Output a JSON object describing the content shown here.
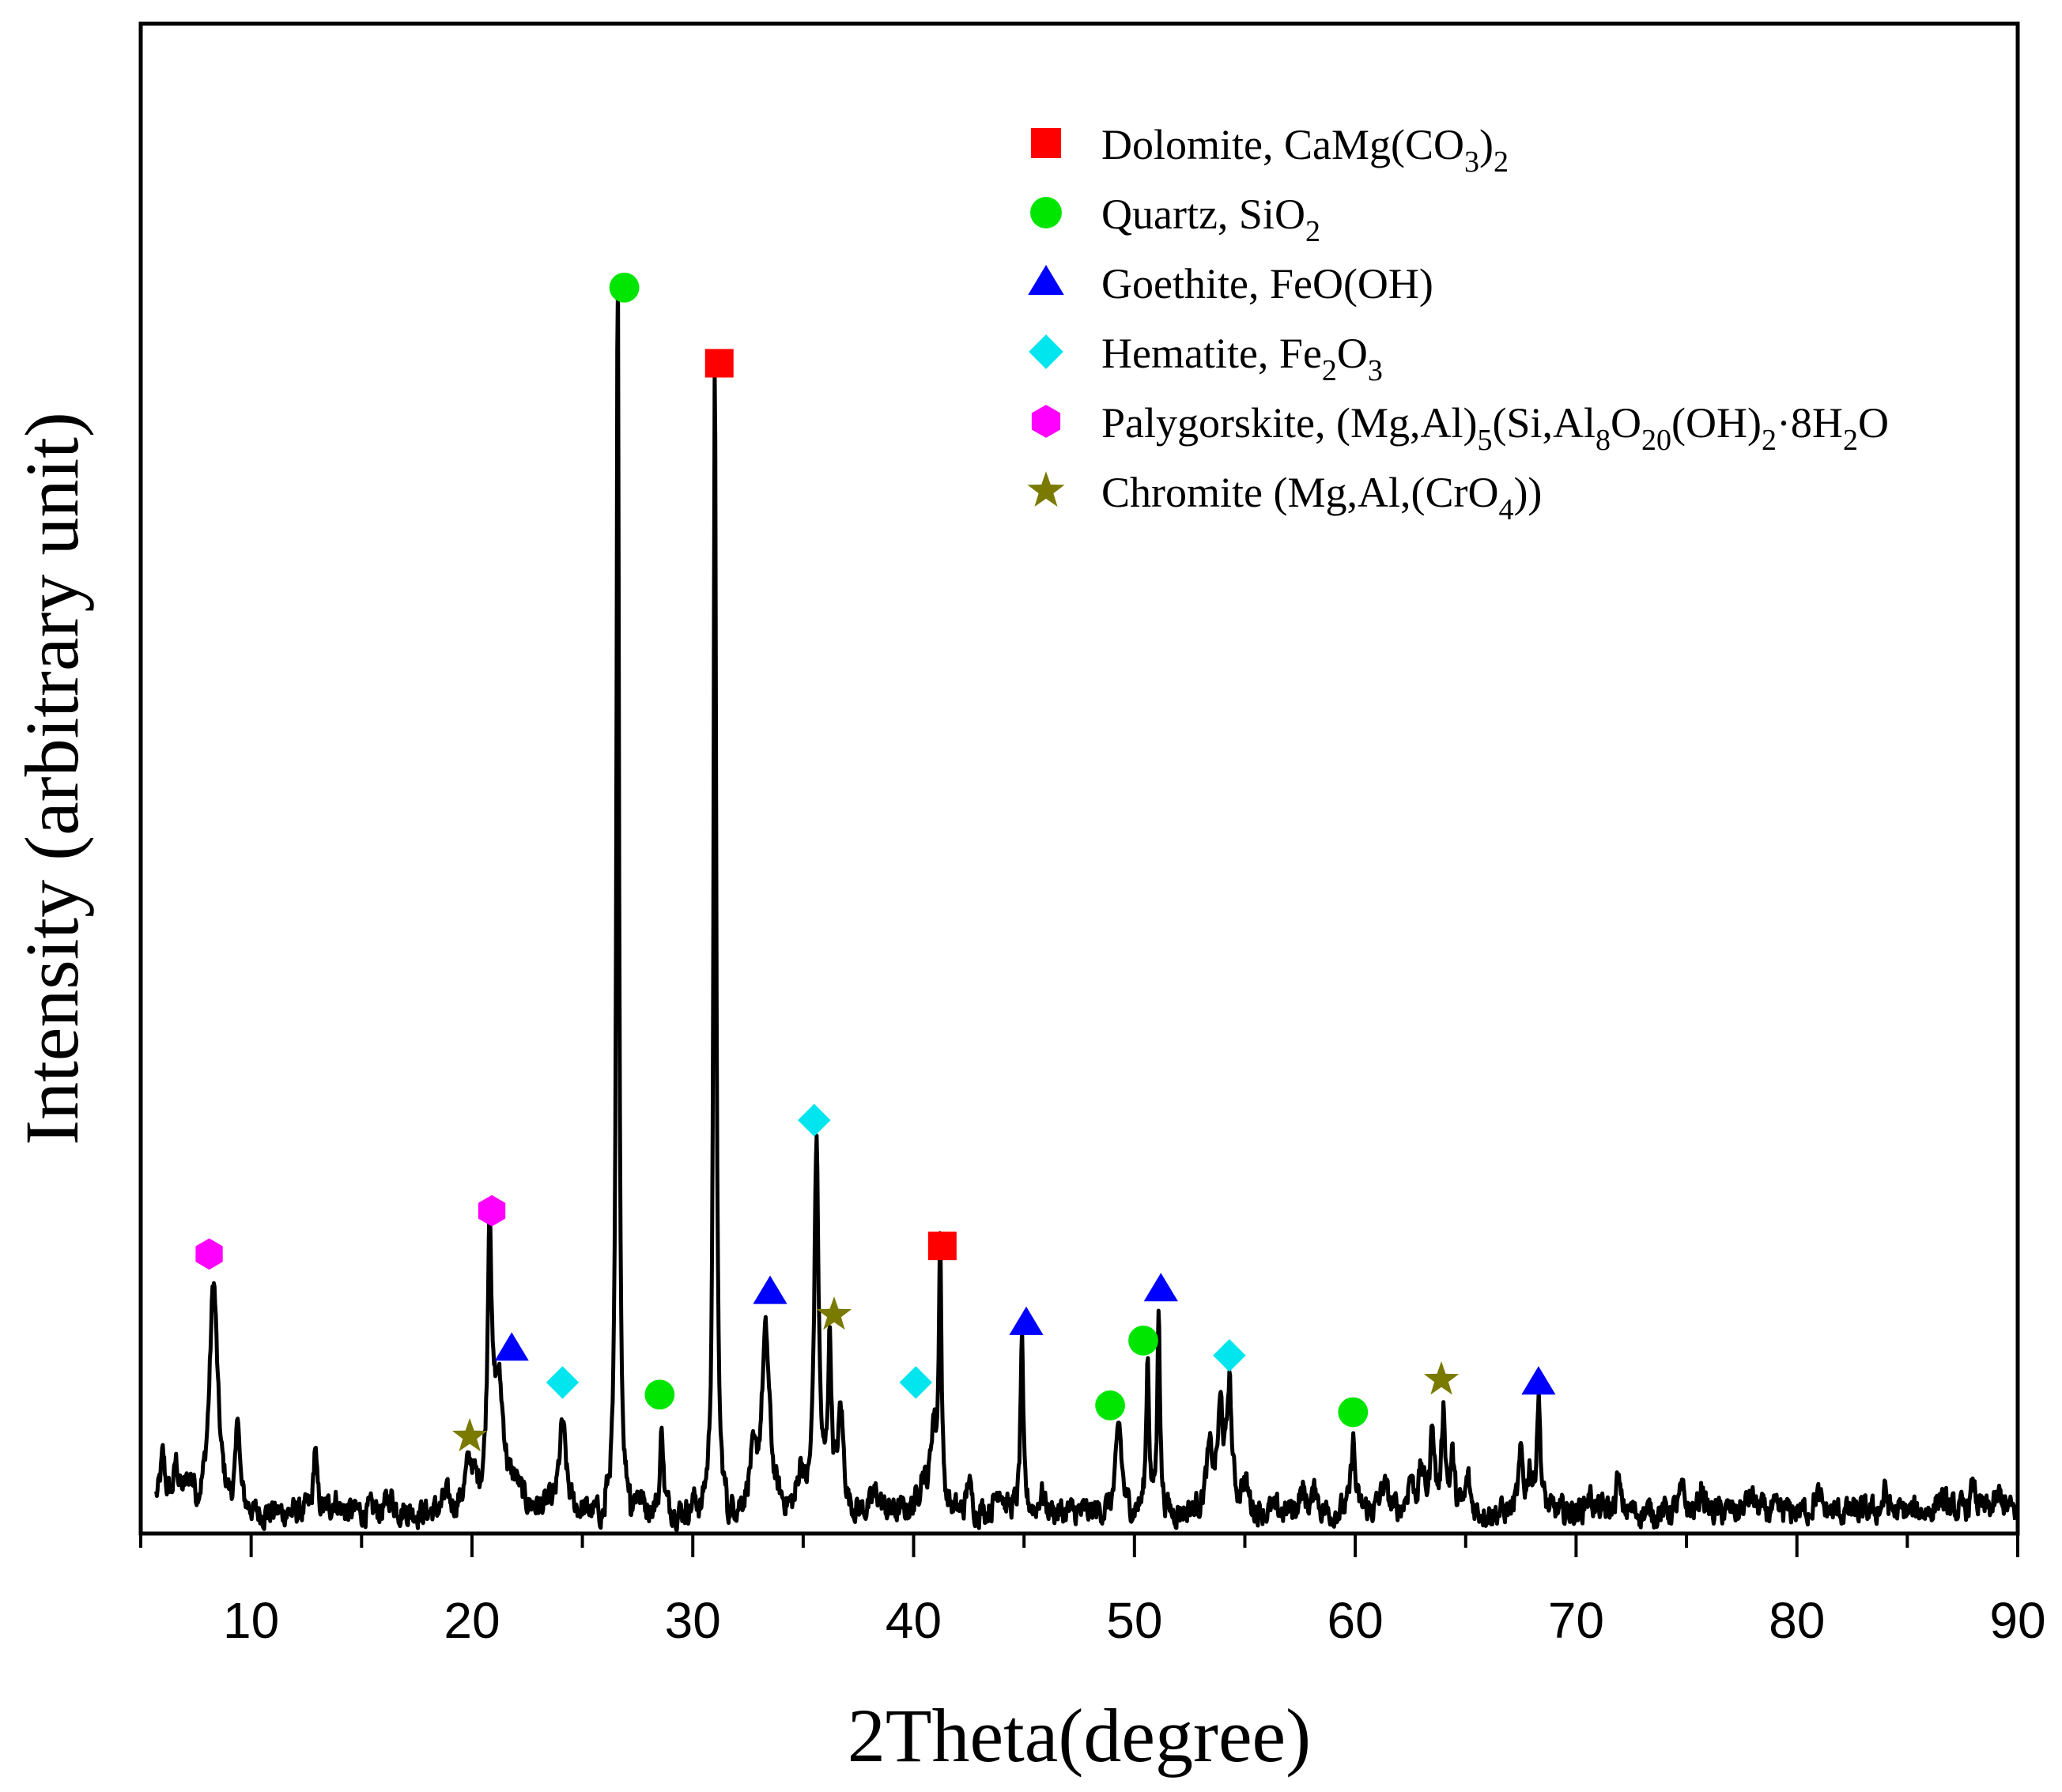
{
  "chart_data": {
    "type": "line",
    "xlabel": "2Theta(degree)",
    "ylabel": "Intensity (arbitrary unit)",
    "xlim": [
      5,
      90
    ],
    "ylim": [
      0,
      100
    ],
    "x_ticks": [
      "10",
      "20",
      "30",
      "40",
      "50",
      "60",
      "70",
      "80",
      "90"
    ],
    "y_ticks_labeled": false,
    "grid": false,
    "legend_position": "top-right",
    "colors": {
      "line": "#000000",
      "dolomite": "#ff0000",
      "quartz": "#00e600",
      "goethite": "#0000ff",
      "hematite": "#00e5ee",
      "palygorskite": "#ff00ff",
      "chromite": "#7a7a00"
    },
    "legend": [
      {
        "key": "dolomite",
        "marker": "square",
        "parts": [
          [
            "Dolomite, CaMg(CO",
            "n"
          ],
          [
            "3",
            "sub"
          ],
          [
            ")",
            "n"
          ],
          [
            "2",
            "sub"
          ]
        ]
      },
      {
        "key": "quartz",
        "marker": "circle",
        "parts": [
          [
            "Quartz, SiO",
            "n"
          ],
          [
            "2",
            "sub"
          ]
        ]
      },
      {
        "key": "goethite",
        "marker": "triangle",
        "parts": [
          [
            "Goethite, FeO(OH)",
            "n"
          ]
        ]
      },
      {
        "key": "hematite",
        "marker": "diamond",
        "parts": [
          [
            "Hematite, Fe",
            "n"
          ],
          [
            "2",
            "sub"
          ],
          [
            "O",
            "n"
          ],
          [
            "3",
            "sub"
          ]
        ]
      },
      {
        "key": "palygorskite",
        "marker": "hexagon",
        "parts": [
          [
            "Palygorskite, (Mg,Al)",
            "n"
          ],
          [
            "5",
            "sub"
          ],
          [
            "(Si,Al",
            "n"
          ],
          [
            "8",
            "sub"
          ],
          [
            "O",
            "n"
          ],
          [
            "20",
            "sub"
          ],
          [
            "(OH)",
            "n"
          ],
          [
            "2",
            "sub"
          ],
          [
            "·8H",
            "n"
          ],
          [
            "2",
            "sub"
          ],
          [
            "O",
            "n"
          ]
        ]
      },
      {
        "key": "chromite",
        "marker": "star",
        "parts": [
          [
            "Chromite (Mg,Al,(CrO",
            "n"
          ],
          [
            "4",
            "sub"
          ],
          [
            "))",
            "n"
          ]
        ]
      }
    ],
    "baseline": 0.7,
    "peaks": [
      [
        6.0,
        3.2,
        0.12
      ],
      [
        6.6,
        2.5,
        0.12
      ],
      [
        7.2,
        1.2,
        0.15
      ],
      [
        8.3,
        17.0,
        0.22
      ],
      [
        9.4,
        7.0,
        0.09
      ],
      [
        12.9,
        5.0,
        0.08
      ],
      [
        13.8,
        1.0,
        0.2
      ],
      [
        16.3,
        1.2,
        0.2
      ],
      [
        18.8,
        1.0,
        0.15
      ],
      [
        19.9,
        3.5,
        0.25
      ],
      [
        20.8,
        20.5,
        0.1
      ],
      [
        21.2,
        9.0,
        0.3
      ],
      [
        22.0,
        1.5,
        0.3
      ],
      [
        24.1,
        6.5,
        0.18
      ],
      [
        26.6,
        92.0,
        0.07
      ],
      [
        27.5,
        1.5,
        0.25
      ],
      [
        28.6,
        6.5,
        0.08
      ],
      [
        30.1,
        1.0,
        0.2
      ],
      [
        31.0,
        86.0,
        0.07
      ],
      [
        32.7,
        3.0,
        0.2
      ],
      [
        33.3,
        13.0,
        0.22
      ],
      [
        34.9,
        3.0,
        0.15
      ],
      [
        35.6,
        27.0,
        0.12
      ],
      [
        36.2,
        12.0,
        0.1
      ],
      [
        36.7,
        7.5,
        0.15
      ],
      [
        38.3,
        1.5,
        0.2
      ],
      [
        40.4,
        2.5,
        0.2
      ],
      [
        40.9,
        6.0,
        0.15
      ],
      [
        41.2,
        20.0,
        0.07
      ],
      [
        42.5,
        2.5,
        0.1
      ],
      [
        43.9,
        2.0,
        0.2
      ],
      [
        44.9,
        13.0,
        0.07
      ],
      [
        45.8,
        1.5,
        0.15
      ],
      [
        49.3,
        6.5,
        0.15
      ],
      [
        50.6,
        11.5,
        0.08
      ],
      [
        51.1,
        15.5,
        0.07
      ],
      [
        53.4,
        4.0,
        0.2
      ],
      [
        53.9,
        7.0,
        0.15
      ],
      [
        54.3,
        9.0,
        0.12
      ],
      [
        55.0,
        2.0,
        0.2
      ],
      [
        57.6,
        1.5,
        0.2
      ],
      [
        58.2,
        2.0,
        0.1
      ],
      [
        59.9,
        5.5,
        0.1
      ],
      [
        61.3,
        2.0,
        0.2
      ],
      [
        62.5,
        2.5,
        0.15
      ],
      [
        63.0,
        3.0,
        0.15
      ],
      [
        63.5,
        6.5,
        0.1
      ],
      [
        64.0,
        7.5,
        0.1
      ],
      [
        64.4,
        4.0,
        0.1
      ],
      [
        65.1,
        2.5,
        0.12
      ],
      [
        67.5,
        4.0,
        0.12
      ],
      [
        67.9,
        3.0,
        0.1
      ],
      [
        68.3,
        8.5,
        0.1
      ],
      [
        70.6,
        1.2,
        0.2
      ],
      [
        71.9,
        2.5,
        0.1
      ],
      [
        74.8,
        1.5,
        0.15
      ],
      [
        75.7,
        2.0,
        0.1
      ],
      [
        77.9,
        1.2,
        0.2
      ],
      [
        80.9,
        1.2,
        0.2
      ],
      [
        84.0,
        1.5,
        0.12
      ],
      [
        86.5,
        1.2,
        0.2
      ],
      [
        88.0,
        1.8,
        0.15
      ],
      [
        89.2,
        1.2,
        0.2
      ]
    ],
    "markers": [
      {
        "phase": "palygorskite",
        "x": 8.1,
        "y": 19.8
      },
      {
        "phase": "palygorskite",
        "x": 20.9,
        "y": 23.0
      },
      {
        "phase": "chromite",
        "x": 19.9,
        "y": 6.3
      },
      {
        "phase": "chromite",
        "x": 36.4,
        "y": 15.3
      },
      {
        "phase": "chromite",
        "x": 63.9,
        "y": 10.5
      },
      {
        "phase": "goethite",
        "x": 21.8,
        "y": 12.8
      },
      {
        "phase": "goethite",
        "x": 33.5,
        "y": 17.0
      },
      {
        "phase": "goethite",
        "x": 45.1,
        "y": 14.7
      },
      {
        "phase": "goethite",
        "x": 51.2,
        "y": 17.2
      },
      {
        "phase": "goethite",
        "x": 68.3,
        "y": 10.3
      },
      {
        "phase": "hematite",
        "x": 24.1,
        "y": 10.3
      },
      {
        "phase": "hematite",
        "x": 35.5,
        "y": 29.7
      },
      {
        "phase": "hematite",
        "x": 40.1,
        "y": 10.3
      },
      {
        "phase": "hematite",
        "x": 54.3,
        "y": 12.3
      },
      {
        "phase": "quartz",
        "x": 26.9,
        "y": 91.3
      },
      {
        "phase": "quartz",
        "x": 28.5,
        "y": 9.4
      },
      {
        "phase": "quartz",
        "x": 48.9,
        "y": 8.6
      },
      {
        "phase": "quartz",
        "x": 50.4,
        "y": 13.4
      },
      {
        "phase": "quartz",
        "x": 59.9,
        "y": 8.1
      },
      {
        "phase": "dolomite",
        "x": 31.2,
        "y": 85.7
      },
      {
        "phase": "dolomite",
        "x": 41.3,
        "y": 20.4
      }
    ]
  }
}
